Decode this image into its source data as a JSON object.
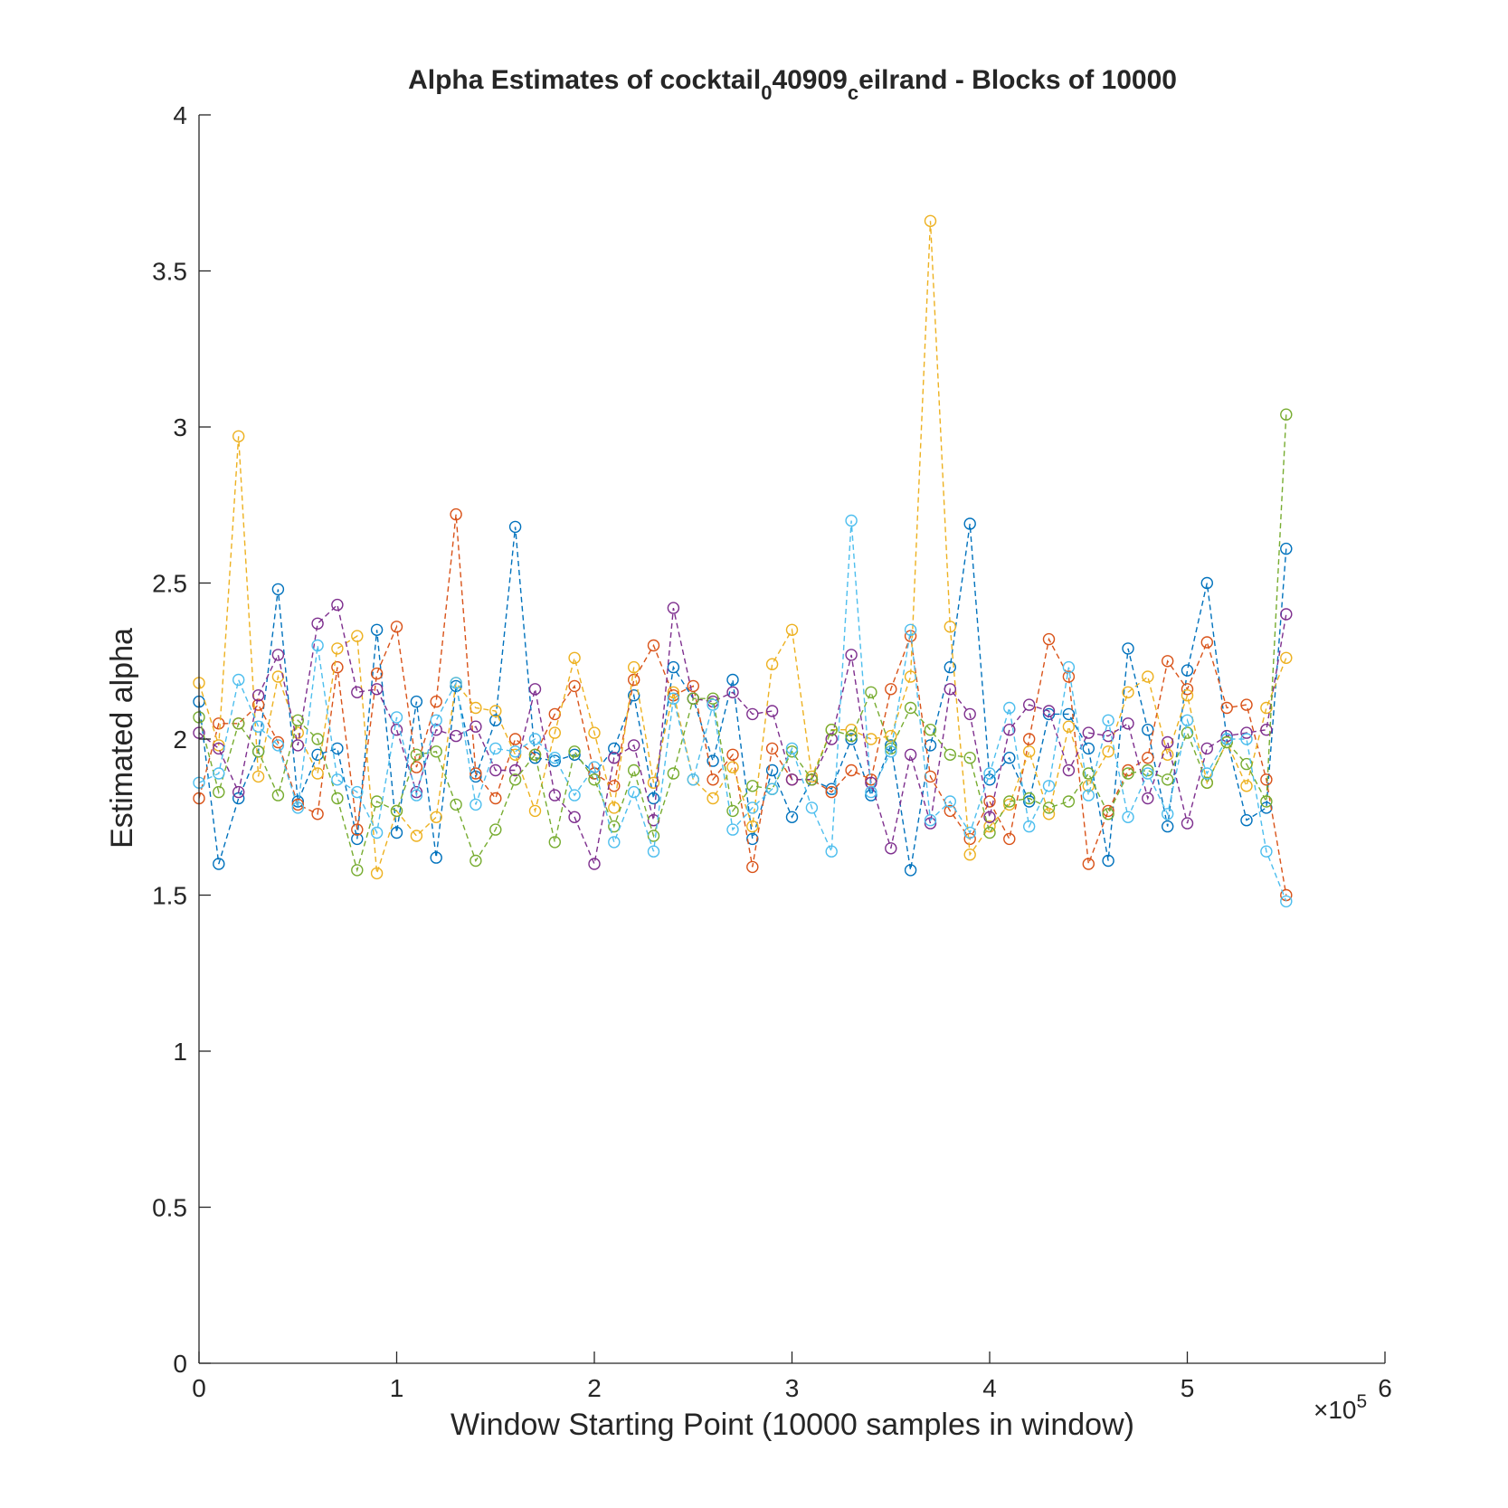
{
  "chart_data": {
    "type": "scatter",
    "title": {
      "main": "Alpha Estimates of cocktail",
      "sub1": "0",
      "mid": "40909",
      "sub2": "c",
      "tail": "eilrand - Blocks of 10000"
    },
    "xlabel": "Window Starting Point (10000 samples in window)",
    "ylabel": "Estimated alpha",
    "x_exponent": {
      "base": "×10",
      "power": "5"
    },
    "xlim": [
      0,
      600000
    ],
    "ylim": [
      0,
      4
    ],
    "x_ticks": [
      0,
      100000,
      200000,
      300000,
      400000,
      500000,
      600000
    ],
    "x_tick_labels": [
      "0",
      "1",
      "2",
      "3",
      "4",
      "5",
      "6"
    ],
    "y_ticks": [
      0,
      0.5,
      1,
      1.5,
      2,
      2.5,
      3,
      3.5,
      4
    ],
    "y_tick_labels": [
      "0",
      "0.5",
      "1",
      "1.5",
      "2",
      "2.5",
      "3",
      "3.5",
      "4"
    ],
    "grid": false,
    "legend": "none",
    "line_style": "dashed",
    "marker": "circle",
    "x": [
      0,
      10000,
      20000,
      30000,
      40000,
      50000,
      60000,
      70000,
      80000,
      90000,
      100000,
      110000,
      120000,
      130000,
      140000,
      150000,
      160000,
      170000,
      180000,
      190000,
      200000,
      210000,
      220000,
      230000,
      240000,
      250000,
      260000,
      270000,
      280000,
      290000,
      300000,
      310000,
      320000,
      330000,
      340000,
      350000,
      360000,
      370000,
      380000,
      390000,
      400000,
      410000,
      420000,
      430000,
      440000,
      450000,
      460000,
      470000,
      480000,
      490000,
      500000,
      510000,
      520000,
      530000,
      540000,
      550000
    ],
    "series": [
      {
        "color": "#0072BD",
        "values": [
          2.12,
          1.6,
          1.81,
          1.96,
          2.48,
          1.8,
          1.95,
          1.97,
          1.68,
          2.35,
          1.7,
          2.12,
          1.62,
          2.17,
          1.88,
          2.06,
          2.68,
          1.94,
          1.93,
          1.95,
          1.89,
          1.97,
          2.14,
          1.81,
          2.23,
          2.13,
          1.93,
          2.19,
          1.68,
          1.9,
          1.75,
          1.87,
          1.84,
          2.0,
          1.82,
          1.98,
          1.58,
          1.98,
          2.23,
          2.69,
          1.87,
          1.94,
          1.8,
          2.08,
          2.08,
          1.97,
          1.61,
          2.29,
          2.03,
          1.72,
          2.22,
          2.5,
          2.0,
          1.74,
          1.78,
          2.61
        ]
      },
      {
        "color": "#D95319",
        "values": [
          1.81,
          2.05,
          2.05,
          2.11,
          1.99,
          1.79,
          1.76,
          2.23,
          1.71,
          2.21,
          2.36,
          1.91,
          2.12,
          2.72,
          1.89,
          1.81,
          2.0,
          1.95,
          2.08,
          2.17,
          1.89,
          1.85,
          2.19,
          2.3,
          2.14,
          2.17,
          1.87,
          1.95,
          1.59,
          1.97,
          1.87,
          1.87,
          1.83,
          1.9,
          1.87,
          2.16,
          2.33,
          1.88,
          1.77,
          1.68,
          1.8,
          1.68,
          2.0,
          2.32,
          2.2,
          1.6,
          1.77,
          1.9,
          1.94,
          2.25,
          2.16,
          2.31,
          2.1,
          2.11,
          1.87,
          1.5
        ]
      },
      {
        "color": "#EDB120",
        "values": [
          2.18,
          1.98,
          2.97,
          1.88,
          2.2,
          2.02,
          1.89,
          2.29,
          2.33,
          1.57,
          1.77,
          1.69,
          1.75,
          2.18,
          2.1,
          2.09,
          1.95,
          1.77,
          2.02,
          2.26,
          2.02,
          1.78,
          2.23,
          1.86,
          2.15,
          1.87,
          1.81,
          1.91,
          1.72,
          2.24,
          2.35,
          1.88,
          2.03,
          2.03,
          2.0,
          2.01,
          2.2,
          3.66,
          2.36,
          1.63,
          1.72,
          1.79,
          1.96,
          1.76,
          2.04,
          1.85,
          1.96,
          2.15,
          2.2,
          1.95,
          2.14,
          1.86,
          1.99,
          1.85,
          2.1,
          2.26
        ]
      },
      {
        "color": "#7E2F8E",
        "values": [
          2.02,
          1.97,
          1.83,
          2.14,
          2.27,
          1.98,
          2.37,
          2.43,
          2.15,
          2.16,
          2.03,
          1.83,
          2.03,
          2.01,
          2.04,
          1.9,
          1.9,
          2.16,
          1.82,
          1.75,
          1.6,
          1.94,
          1.98,
          1.74,
          2.42,
          2.13,
          2.12,
          2.15,
          2.08,
          2.09,
          1.87,
          1.87,
          2.0,
          2.27,
          1.86,
          1.65,
          1.95,
          1.73,
          2.16,
          2.08,
          1.75,
          2.03,
          2.11,
          2.09,
          1.9,
          2.02,
          2.01,
          2.05,
          1.81,
          1.99,
          1.73,
          1.97,
          2.01,
          2.02,
          2.03,
          2.4
        ]
      },
      {
        "color": "#77AC30",
        "values": [
          2.07,
          1.83,
          2.05,
          1.96,
          1.82,
          2.06,
          2.0,
          1.81,
          1.58,
          1.8,
          1.77,
          1.95,
          1.96,
          1.79,
          1.61,
          1.71,
          1.87,
          1.95,
          1.67,
          1.96,
          1.87,
          1.72,
          1.9,
          1.69,
          1.89,
          2.13,
          2.13,
          1.77,
          1.85,
          1.84,
          1.96,
          1.87,
          2.03,
          2.01,
          2.15,
          1.97,
          2.1,
          2.03,
          1.95,
          1.94,
          1.7,
          1.8,
          1.81,
          1.78,
          1.8,
          1.89,
          1.76,
          1.89,
          1.9,
          1.87,
          2.02,
          1.86,
          1.99,
          1.92,
          1.8,
          3.04
        ]
      },
      {
        "color": "#4DBEEE",
        "values": [
          1.86,
          1.89,
          2.19,
          2.04,
          1.98,
          1.78,
          2.3,
          1.87,
          1.83,
          1.7,
          2.07,
          1.82,
          2.06,
          2.18,
          1.79,
          1.97,
          1.96,
          2.0,
          1.94,
          1.82,
          1.91,
          1.67,
          1.83,
          1.64,
          2.13,
          1.87,
          2.11,
          1.71,
          1.78,
          1.84,
          1.97,
          1.78,
          1.64,
          2.7,
          1.83,
          1.96,
          2.35,
          1.74,
          1.8,
          1.7,
          1.89,
          2.1,
          1.72,
          1.85,
          2.23,
          1.82,
          2.06,
          1.75,
          1.89,
          1.76,
          2.06,
          1.89,
          2.0,
          2.0,
          1.64,
          1.48
        ]
      }
    ]
  }
}
